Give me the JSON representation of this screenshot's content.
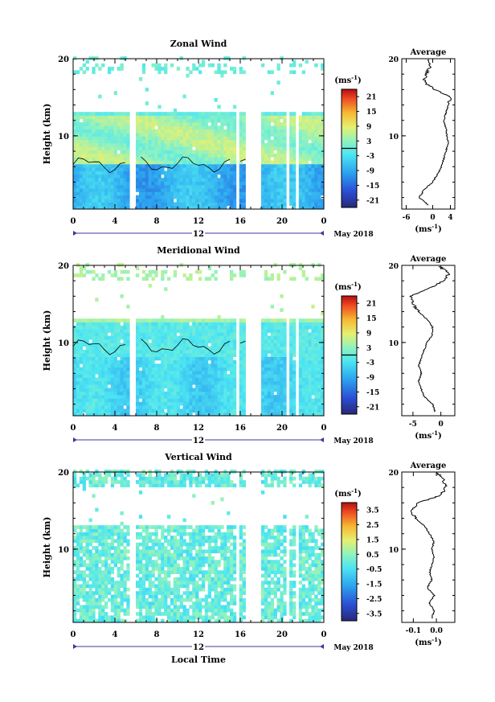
{
  "chart_data": [
    {
      "type": "heatmap",
      "title": "Zonal Wind",
      "ylabel": "Height (km)",
      "x_ticks": [
        "0",
        "4",
        "8",
        "12",
        "16",
        "20",
        "0"
      ],
      "y_ticks": [
        "20",
        "10"
      ],
      "date_label": "12",
      "month_label": "May 2018",
      "xlim": [
        0,
        24
      ],
      "ylim": [
        0.5,
        20
      ],
      "colorbar": {
        "unit": "(ms",
        "unit_exp": "-1",
        "unit_close": ")",
        "labels": [
          "21",
          "15",
          "9",
          "3",
          "-3",
          "-9",
          "-15",
          "-21"
        ],
        "range": [
          -24,
          24
        ]
      },
      "data_gaps_hours": [
        [
          5.3,
          6.1
        ],
        [
          15.5,
          15.9
        ],
        [
          16.6,
          18.0
        ],
        [
          20.3,
          20.7
        ],
        [
          21.2,
          21.5
        ]
      ],
      "profile": {
        "title": "Average",
        "x_ticks": [
          "-6",
          "0",
          "4"
        ],
        "xlim": [
          -7,
          5
        ],
        "unit": "(ms",
        "unit_exp": "-1",
        "unit_close": ")",
        "heights": [
          1,
          2,
          3,
          4,
          5,
          6,
          7,
          8,
          9,
          10,
          11,
          12,
          13,
          14,
          15,
          16,
          17,
          18,
          19,
          20
        ],
        "values": [
          -1.0,
          -3.0,
          -2.0,
          0.0,
          1.0,
          2.0,
          2.5,
          3.0,
          3.5,
          3.2,
          3.0,
          2.5,
          3.0,
          3.5,
          4.0,
          0.5,
          -2.0,
          -1.5,
          -0.5,
          -0.8
        ]
      }
    },
    {
      "type": "heatmap",
      "title": "Meridional Wind",
      "ylabel": "Height (km)",
      "x_ticks": [
        "0",
        "4",
        "8",
        "12",
        "16",
        "20",
        "0"
      ],
      "y_ticks": [
        "20",
        "10"
      ],
      "date_label": "12",
      "month_label": "May 2018",
      "xlim": [
        0,
        24
      ],
      "ylim": [
        0.5,
        20
      ],
      "colorbar": {
        "unit": "(ms",
        "unit_exp": "-1",
        "unit_close": ")",
        "labels": [
          "21",
          "15",
          "9",
          "3",
          "-3",
          "-9",
          "-15",
          "-21"
        ],
        "range": [
          -24,
          24
        ]
      },
      "data_gaps_hours": [
        [
          5.3,
          6.1
        ],
        [
          15.5,
          15.9
        ],
        [
          16.6,
          18.0
        ],
        [
          20.3,
          20.7
        ],
        [
          21.2,
          21.5
        ]
      ],
      "profile": {
        "title": "Average",
        "x_ticks": [
          "-5",
          "0"
        ],
        "xlim": [
          -7,
          2.5
        ],
        "unit": "(ms",
        "unit_exp": "-1",
        "unit_close": ")",
        "heights": [
          1,
          2,
          3,
          4,
          5,
          6,
          7,
          8,
          9,
          10,
          11,
          12,
          13,
          14,
          15,
          16,
          17,
          18,
          19,
          20
        ],
        "values": [
          -1.0,
          -1.5,
          -3.0,
          -3.5,
          -4.0,
          -3.5,
          -4.0,
          -3.5,
          -3.0,
          -2.5,
          -1.5,
          -1.5,
          -2.5,
          -4.0,
          -5.0,
          -5.5,
          -2.0,
          0.5,
          1.5,
          -0.5
        ]
      }
    },
    {
      "type": "heatmap",
      "title": "Vertical Wind",
      "ylabel": "Height (km)",
      "xlabel": "Local Time",
      "x_ticks": [
        "0",
        "4",
        "8",
        "12",
        "16",
        "20",
        "0"
      ],
      "y_ticks": [
        "20",
        "10"
      ],
      "date_label": "12",
      "month_label": "May 2018",
      "xlim": [
        0,
        24
      ],
      "ylim": [
        0.5,
        20
      ],
      "colorbar": {
        "unit": "(ms",
        "unit_exp": "-1",
        "unit_close": ")",
        "labels": [
          "3.5",
          "2.5",
          "1.5",
          "0.5",
          "-0.5",
          "-1.5",
          "-2.5",
          "-3.5"
        ],
        "range": [
          -4,
          4
        ]
      },
      "data_gaps_hours": [
        [
          5.3,
          6.1
        ],
        [
          15.5,
          15.9
        ],
        [
          16.6,
          18.0
        ],
        [
          20.3,
          20.7
        ],
        [
          21.2,
          21.5
        ]
      ],
      "profile": {
        "title": "Average",
        "x_ticks": [
          "-0.1",
          "0.0"
        ],
        "xlim": [
          -0.15,
          0.08
        ],
        "unit": "(ms",
        "unit_exp": "-1",
        "unit_close": ")",
        "heights": [
          1,
          2,
          3,
          4,
          5,
          6,
          7,
          8,
          9,
          10,
          11,
          12,
          13,
          14,
          15,
          16,
          17,
          18,
          19,
          20
        ],
        "values": [
          -0.02,
          -0.01,
          -0.03,
          -0.01,
          -0.04,
          -0.02,
          -0.03,
          -0.02,
          -0.01,
          -0.02,
          -0.01,
          -0.03,
          -0.05,
          -0.09,
          -0.11,
          -0.08,
          0.02,
          0.04,
          0.03,
          0.0
        ]
      }
    }
  ]
}
